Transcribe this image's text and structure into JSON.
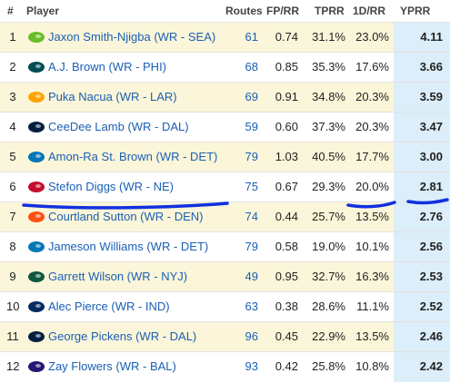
{
  "header": {
    "rank": "#",
    "player": "Player",
    "routes": "Routes",
    "fprr": "FP/RR",
    "tprr": "TPRR",
    "dr": "1D/RR",
    "yprr": "YPRR"
  },
  "rows": [
    {
      "rank": "1",
      "player": "Jaxon Smith-Njigba (WR - SEA)",
      "routes": "61",
      "fprr": "0.74",
      "tprr": "31.1%",
      "dr": "23.0%",
      "yprr": "4.11",
      "logo": "seahawks-logo-icon",
      "color": "#69be28"
    },
    {
      "rank": "2",
      "player": "A.J. Brown (WR - PHI)",
      "routes": "68",
      "fprr": "0.85",
      "tprr": "35.3%",
      "dr": "17.6%",
      "yprr": "3.66",
      "logo": "eagles-logo-icon",
      "color": "#004c54"
    },
    {
      "rank": "3",
      "player": "Puka Nacua (WR - LAR)",
      "routes": "69",
      "fprr": "0.91",
      "tprr": "34.8%",
      "dr": "20.3%",
      "yprr": "3.59",
      "logo": "rams-logo-icon",
      "color": "#ffa300"
    },
    {
      "rank": "4",
      "player": "CeeDee Lamb (WR - DAL)",
      "routes": "59",
      "fprr": "0.60",
      "tprr": "37.3%",
      "dr": "20.3%",
      "yprr": "3.47",
      "logo": "cowboys-logo-icon",
      "color": "#041e42"
    },
    {
      "rank": "5",
      "player": "Amon-Ra St. Brown (WR - DET)",
      "routes": "79",
      "fprr": "1.03",
      "tprr": "40.5%",
      "dr": "17.7%",
      "yprr": "3.00",
      "logo": "lions-logo-icon",
      "color": "#0076b6"
    },
    {
      "rank": "6",
      "player": "Stefon Diggs (WR - NE)",
      "routes": "75",
      "fprr": "0.67",
      "tprr": "29.3%",
      "dr": "20.0%",
      "yprr": "2.81",
      "logo": "patriots-logo-icon",
      "color": "#c60c30"
    },
    {
      "rank": "7",
      "player": "Courtland Sutton (WR - DEN)",
      "routes": "74",
      "fprr": "0.44",
      "tprr": "25.7%",
      "dr": "13.5%",
      "yprr": "2.76",
      "logo": "broncos-logo-icon",
      "color": "#fb4f14"
    },
    {
      "rank": "8",
      "player": "Jameson Williams (WR - DET)",
      "routes": "79",
      "fprr": "0.58",
      "tprr": "19.0%",
      "dr": "10.1%",
      "yprr": "2.56",
      "logo": "lions-logo-icon",
      "color": "#0076b6"
    },
    {
      "rank": "9",
      "player": "Garrett Wilson (WR - NYJ)",
      "routes": "49",
      "fprr": "0.95",
      "tprr": "32.7%",
      "dr": "16.3%",
      "yprr": "2.53",
      "logo": "jets-logo-icon",
      "color": "#125740"
    },
    {
      "rank": "10",
      "player": "Alec Pierce (WR - IND)",
      "routes": "63",
      "fprr": "0.38",
      "tprr": "28.6%",
      "dr": "11.1%",
      "yprr": "2.52",
      "logo": "colts-logo-icon",
      "color": "#002c5f"
    },
    {
      "rank": "11",
      "player": "George Pickens (WR - DAL)",
      "routes": "96",
      "fprr": "0.45",
      "tprr": "22.9%",
      "dr": "13.5%",
      "yprr": "2.46",
      "logo": "cowboys-logo-icon",
      "color": "#041e42"
    },
    {
      "rank": "12",
      "player": "Zay Flowers (WR - BAL)",
      "routes": "93",
      "fprr": "0.42",
      "tprr": "25.8%",
      "dr": "10.8%",
      "yprr": "2.42",
      "logo": "ravens-logo-icon",
      "color": "#241773"
    }
  ],
  "annotation_color": "#1030e0"
}
